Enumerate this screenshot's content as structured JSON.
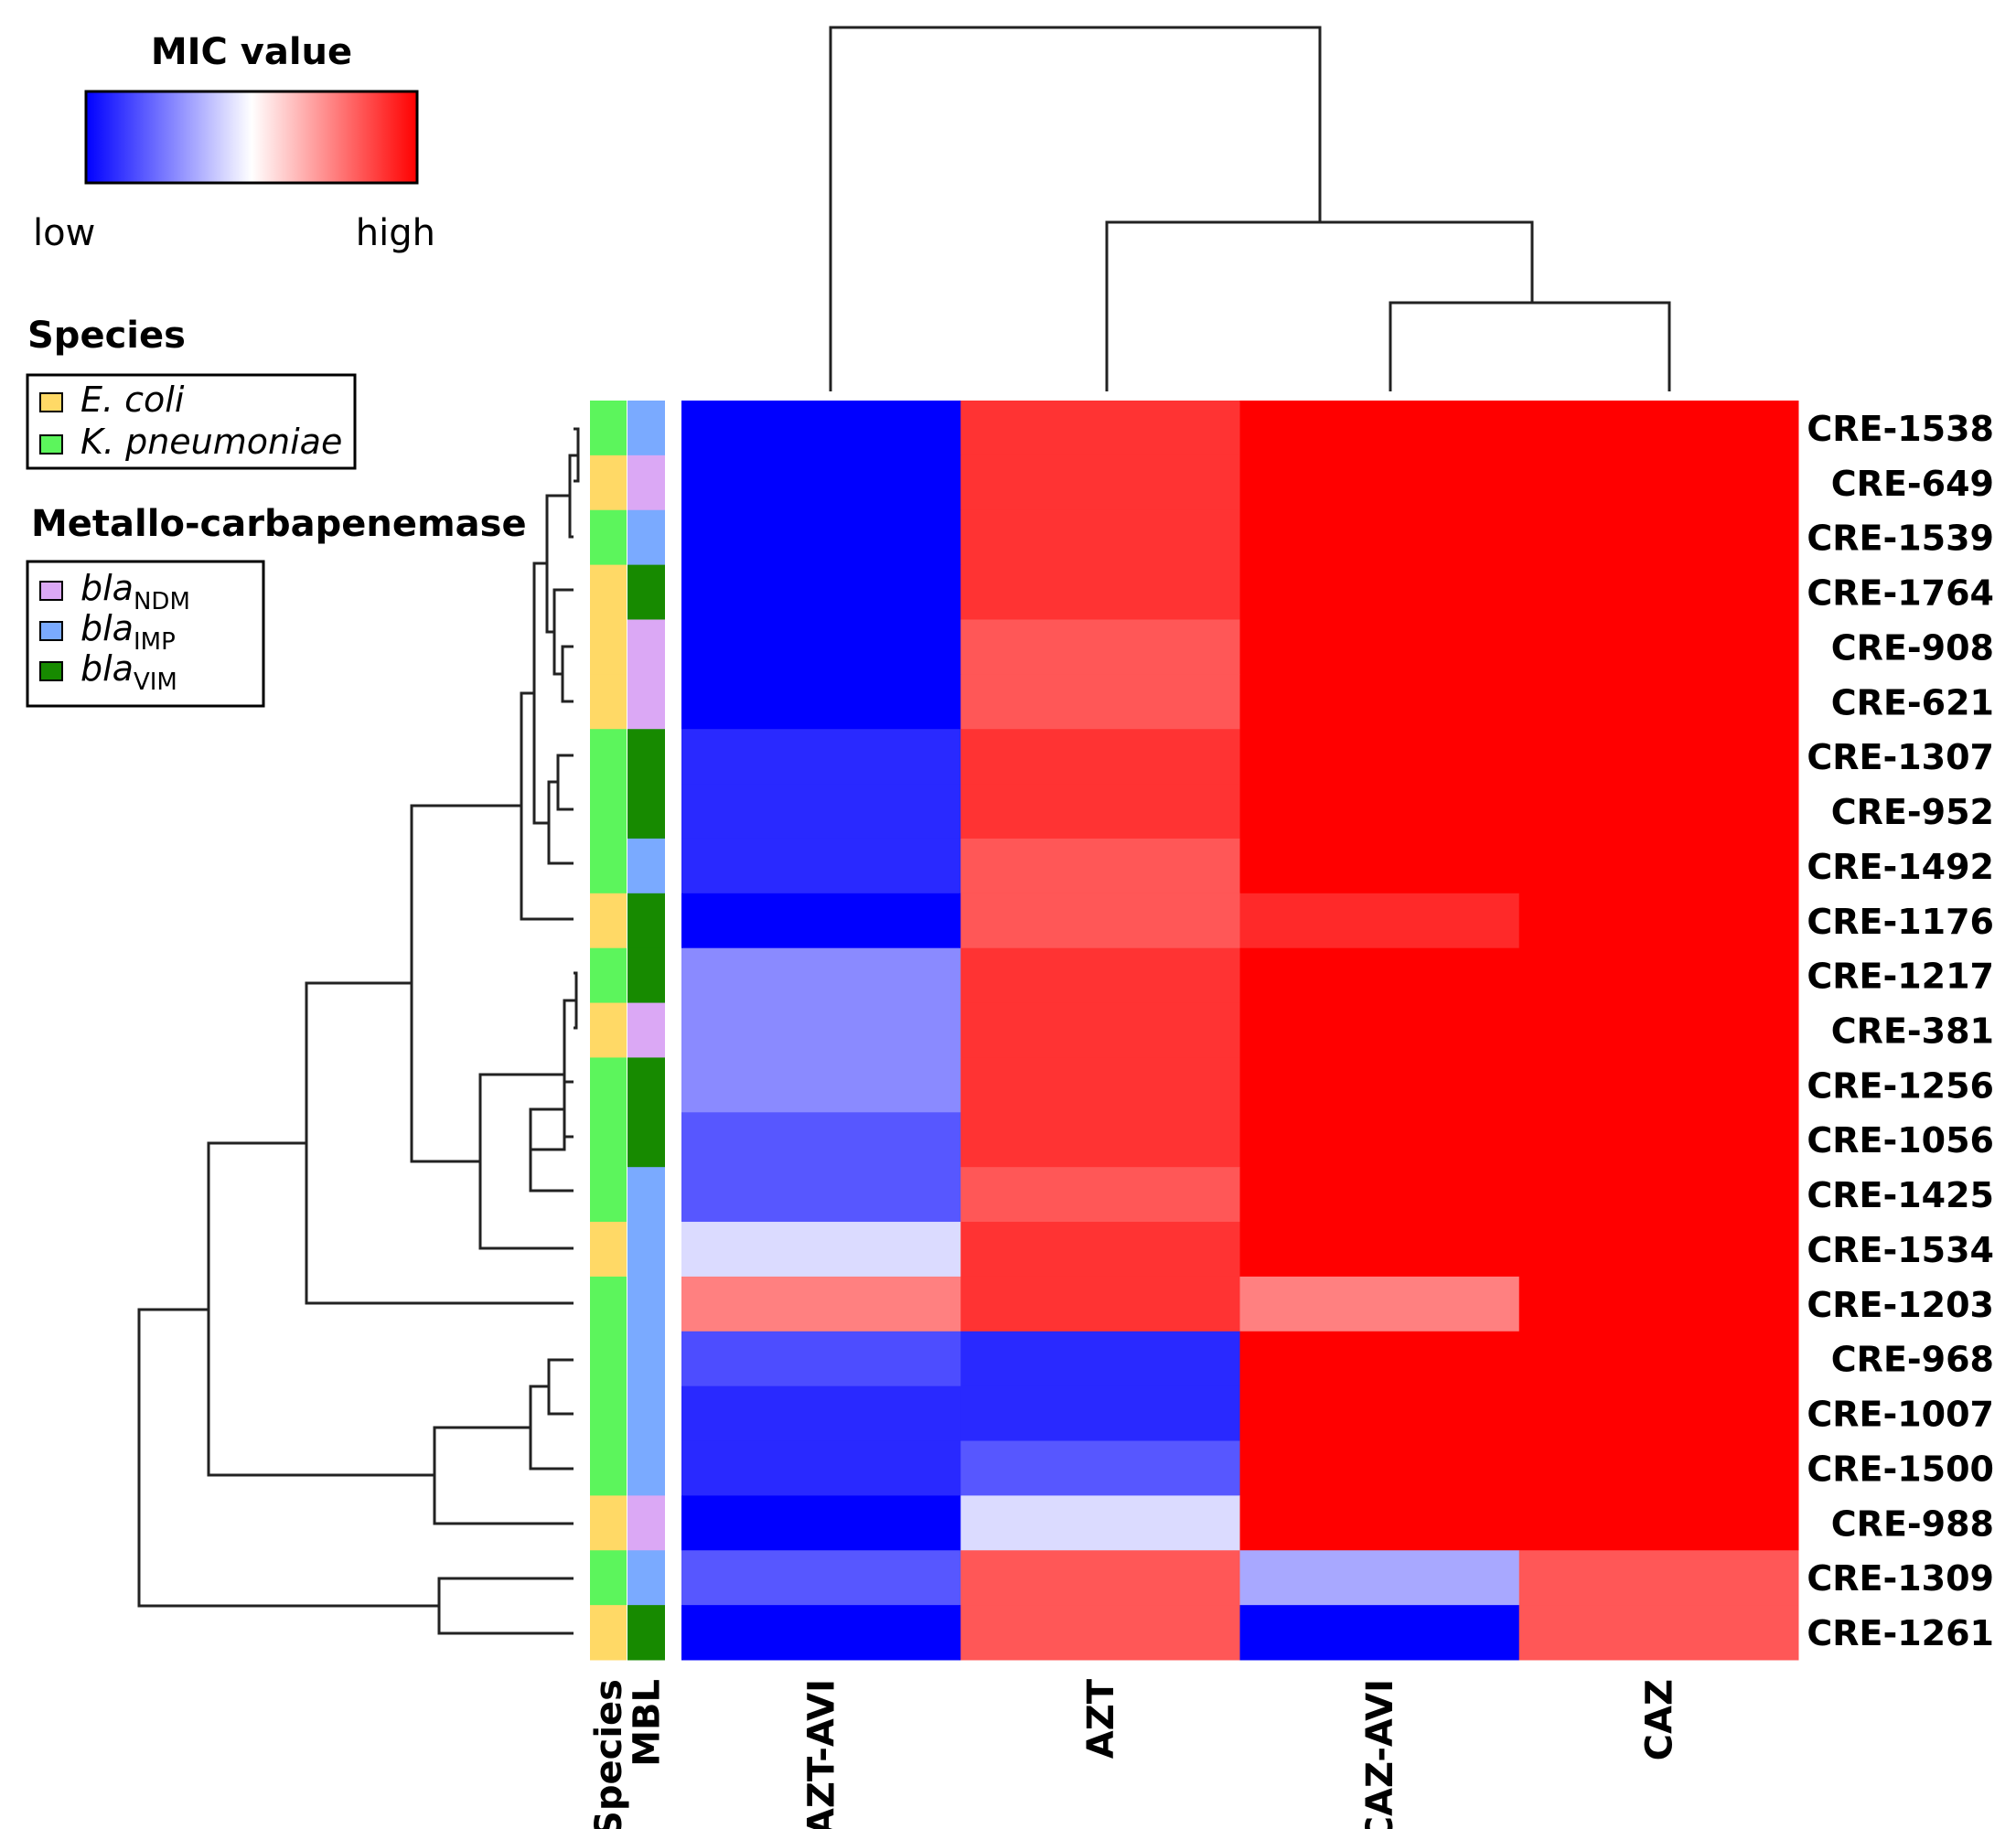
{
  "chart_data": {
    "type": "heatmap",
    "title": "MIC value",
    "scale": {
      "low_label": "low",
      "high_label": "high",
      "low_color": "#0000ff",
      "mid_color": "#ffffff",
      "high_color": "#ff0000"
    },
    "columns": [
      "AZT-AVI",
      "AZT",
      "CAZ-AVI",
      "CAZ"
    ],
    "annotation_columns": [
      "Species",
      "MBL"
    ],
    "rows": [
      {
        "id": "CRE-1538",
        "species": "kpn",
        "mbl": "imp",
        "values": [
          0.0,
          0.9,
          1.0,
          1.0
        ]
      },
      {
        "id": "CRE-649",
        "species": "eco",
        "mbl": "ndm",
        "values": [
          0.0,
          0.9,
          1.0,
          1.0
        ]
      },
      {
        "id": "CRE-1539",
        "species": "kpn",
        "mbl": "imp",
        "values": [
          0.0,
          0.9,
          1.0,
          1.0
        ]
      },
      {
        "id": "CRE-1764",
        "species": "eco",
        "mbl": "vim",
        "values": [
          0.0,
          0.9,
          1.0,
          1.0
        ]
      },
      {
        "id": "CRE-908",
        "species": "eco",
        "mbl": "ndm",
        "values": [
          0.0,
          0.83,
          1.0,
          1.0
        ]
      },
      {
        "id": "CRE-621",
        "species": "eco",
        "mbl": "ndm",
        "values": [
          0.0,
          0.83,
          1.0,
          1.0
        ]
      },
      {
        "id": "CRE-1307",
        "species": "kpn",
        "mbl": "vim",
        "values": [
          0.08,
          0.9,
          1.0,
          1.0
        ]
      },
      {
        "id": "CRE-952",
        "species": "kpn",
        "mbl": "vim",
        "values": [
          0.08,
          0.9,
          1.0,
          1.0
        ]
      },
      {
        "id": "CRE-1492",
        "species": "kpn",
        "mbl": "imp",
        "values": [
          0.08,
          0.83,
          1.0,
          1.0
        ]
      },
      {
        "id": "CRE-1176",
        "species": "eco",
        "mbl": "vim",
        "values": [
          0.0,
          0.83,
          0.92,
          1.0
        ]
      },
      {
        "id": "CRE-1217",
        "species": "kpn",
        "mbl": "vim",
        "values": [
          0.27,
          0.9,
          1.0,
          1.0
        ]
      },
      {
        "id": "CRE-381",
        "species": "eco",
        "mbl": "ndm",
        "values": [
          0.27,
          0.9,
          1.0,
          1.0
        ]
      },
      {
        "id": "CRE-1256",
        "species": "kpn",
        "mbl": "vim",
        "values": [
          0.27,
          0.9,
          1.0,
          1.0
        ]
      },
      {
        "id": "CRE-1056",
        "species": "kpn",
        "mbl": "vim",
        "values": [
          0.17,
          0.9,
          1.0,
          1.0
        ]
      },
      {
        "id": "CRE-1425",
        "species": "kpn",
        "mbl": "imp",
        "values": [
          0.17,
          0.83,
          1.0,
          1.0
        ]
      },
      {
        "id": "CRE-1534",
        "species": "eco",
        "mbl": "imp",
        "values": [
          0.43,
          0.9,
          1.0,
          1.0
        ]
      },
      {
        "id": "CRE-1203",
        "species": "kpn",
        "mbl": "imp",
        "values": [
          0.75,
          0.9,
          0.75,
          1.0
        ]
      },
      {
        "id": "CRE-968",
        "species": "kpn",
        "mbl": "imp",
        "values": [
          0.15,
          0.08,
          1.0,
          1.0
        ]
      },
      {
        "id": "CRE-1007",
        "species": "kpn",
        "mbl": "imp",
        "values": [
          0.08,
          0.08,
          1.0,
          1.0
        ]
      },
      {
        "id": "CRE-1500",
        "species": "kpn",
        "mbl": "imp",
        "values": [
          0.08,
          0.17,
          1.0,
          1.0
        ]
      },
      {
        "id": "CRE-988",
        "species": "eco",
        "mbl": "ndm",
        "values": [
          0.0,
          0.43,
          1.0,
          1.0
        ]
      },
      {
        "id": "CRE-1309",
        "species": "kpn",
        "mbl": "imp",
        "values": [
          0.17,
          0.83,
          0.33,
          0.83
        ]
      },
      {
        "id": "CRE-1261",
        "species": "eco",
        "mbl": "vim",
        "values": [
          0.0,
          0.83,
          0.0,
          0.83
        ]
      }
    ],
    "legends": {
      "species": {
        "title": "Species",
        "items": [
          {
            "key": "eco",
            "label": "E. coli",
            "color": "#ffd966"
          },
          {
            "key": "kpn",
            "label": "K. pneumoniae",
            "color": "#5cf55c"
          }
        ]
      },
      "mbl": {
        "title": "Metallo-carbapenemase",
        "items": [
          {
            "key": "ndm",
            "prefix": "bla",
            "sub": "NDM",
            "color": "#dba8f5"
          },
          {
            "key": "imp",
            "prefix": "bla",
            "sub": "IMP",
            "color": "#7aaaff"
          },
          {
            "key": "vim",
            "prefix": "bla",
            "sub": "VIM",
            "color": "#178a00"
          }
        ]
      }
    }
  }
}
